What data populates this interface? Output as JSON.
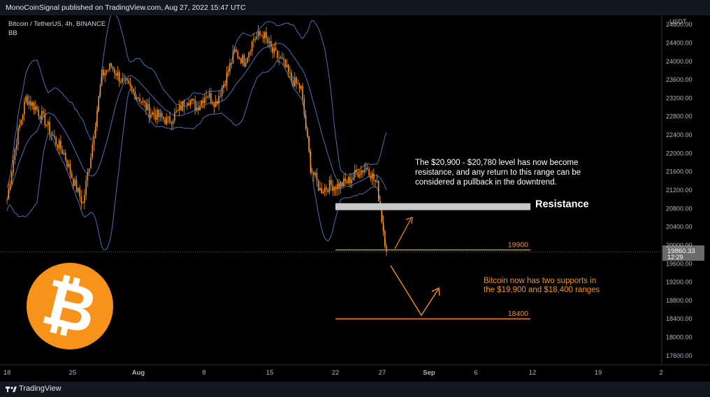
{
  "header": {
    "publish_line": "MonoCoinSignal published on TradingView.com, Aug 27, 2022 15:47 UTC"
  },
  "symbol": {
    "line1": "Bitcoin / TetherUS, 4h, BINANCE",
    "line2": "BB"
  },
  "footer": {
    "brand": "TradingView"
  },
  "annotations": {
    "resistance_note": [
      "The $20,900 - $20,780 level has now become",
      "resistance, and any return to this range can be",
      "considered a pullback in the downtrend."
    ],
    "resistance_label": "Resistance",
    "support_note": [
      "Bitcoin now has two supports in",
      "the $19,900 and $18,400 ranges"
    ],
    "support1_label": "19900",
    "support2_label": "18400",
    "price_tag": "19860.33",
    "countdown": "12:29"
  },
  "colors": {
    "candle": "#f7931a",
    "bands": "#4a6fb5",
    "resistance_zone": "#c8c8c8",
    "support_line": "#f7931a",
    "bitcoin_logo": "#f7931a"
  },
  "chart_data": {
    "type": "line",
    "title": "Bitcoin / TetherUS, 4h, BINANCE",
    "ylabel": "USDT",
    "indicator": "BB",
    "ylim": [
      17400,
      25000
    ],
    "y_ticks": [
      24800,
      24400,
      24000,
      23600,
      23200,
      22800,
      22400,
      22000,
      21600,
      21200,
      20800,
      20400,
      20000,
      19600,
      19200,
      18800,
      18400,
      18000,
      17600
    ],
    "x_ticks": [
      "18",
      "25",
      "Aug",
      "8",
      "15",
      "22",
      "27",
      "Sep",
      "6",
      "12",
      "19",
      "2"
    ],
    "current_price": 19860.33,
    "resistance_zone": [
      20780,
      20900
    ],
    "supports": [
      19900,
      18400
    ],
    "series": [
      {
        "x": [
          "Jul 18",
          "Jul 19",
          "Jul 20",
          "Jul 21",
          "Jul 22",
          "Jul 23",
          "Jul 24",
          "Jul 25",
          "Jul 26",
          "Jul 27",
          "Jul 28",
          "Jul 29",
          "Jul 30",
          "Jul 31",
          "Aug 1",
          "Aug 2",
          "Aug 3",
          "Aug 4",
          "Aug 5",
          "Aug 6",
          "Aug 7",
          "Aug 8",
          "Aug 9",
          "Aug 10",
          "Aug 11",
          "Aug 12",
          "Aug 13",
          "Aug 14",
          "Aug 15",
          "Aug 16",
          "Aug 17",
          "Aug 18",
          "Aug 19",
          "Aug 20",
          "Aug 21",
          "Aug 22",
          "Aug 23",
          "Aug 24",
          "Aug 25",
          "Aug 26",
          "Aug 27"
        ],
        "values": [
          21000,
          22300,
          23200,
          23000,
          22700,
          22300,
          22000,
          21400,
          20900,
          22200,
          23700,
          23900,
          23600,
          23400,
          23200,
          22900,
          22800,
          22700,
          22900,
          23200,
          23000,
          23300,
          23100,
          23600,
          24200,
          24000,
          24500,
          24600,
          24200,
          24000,
          23600,
          23400,
          21700,
          21200,
          21300,
          21300,
          21400,
          21600,
          21700,
          21300,
          19860
        ]
      }
    ]
  }
}
